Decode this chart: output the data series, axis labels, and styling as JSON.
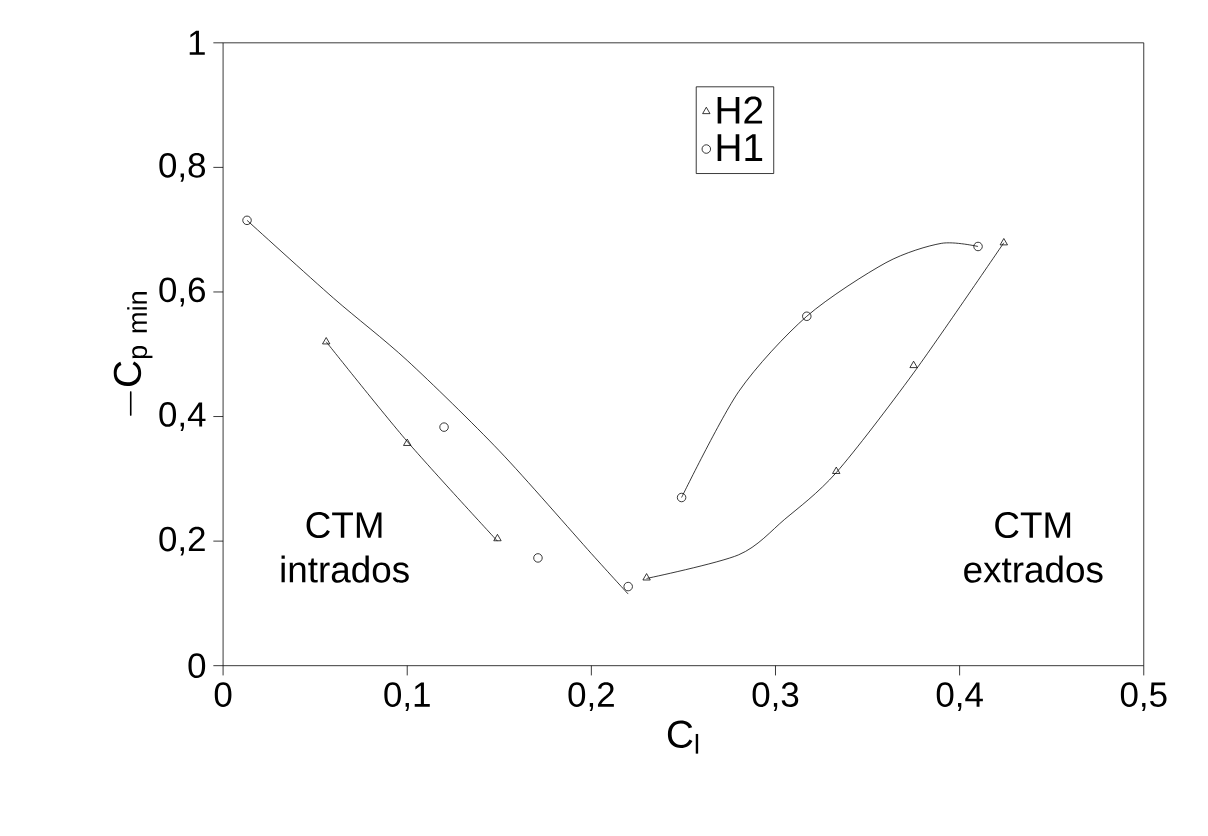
{
  "chart_data": {
    "type": "scatter",
    "xlabel": "C$_{l}$",
    "ylabel": "-\\mathrm{C}_{\\mathrm{p\\ min}}",
    "xlim": [
      0,
      0.5
    ],
    "ylim": [
      0,
      1
    ],
    "xticks": [
      0,
      {
        "value": 0.1,
        "label": "0,1"
      },
      {
        "value": 0.2,
        "label": "0,2"
      },
      {
        "value": 0.3,
        "label": "0,3"
      },
      {
        "value": 0.4,
        "label": "0,4"
      },
      {
        "value": 0.5,
        "label": "0,5"
      }
    ],
    "yticks": [
      0,
      {
        "value": 0.2,
        "label": "0,2"
      },
      {
        "value": 0.4,
        "label": "0,4"
      },
      {
        "value": 0.6,
        "label": "0,6"
      },
      {
        "value": 0.8,
        "label": "0,8"
      },
      1
    ],
    "legend": "top",
    "series": [
      {
        "name": "H2",
        "marker": "triangle",
        "color": "#000000",
        "x": [
          0.056,
          0.1,
          0.149,
          0.23,
          0.333,
          0.375,
          0.424
        ],
        "values": [
          0.52,
          0.357,
          0.204,
          0.141,
          0.312,
          0.482,
          0.679
        ]
      },
      {
        "name": "H1",
        "marker": "circle",
        "color": "#000000",
        "x": [
          0.013,
          0.12,
          0.171,
          0.22,
          0.249,
          0.317,
          0.41
        ],
        "values": [
          0.715,
          0.383,
          0.173,
          0.127,
          0.27,
          0.561,
          0.673
        ]
      },
      {
        "type": "line",
        "marker": "none",
        "color": "#000000",
        "x": [
          0.013,
          0.06,
          0.1,
          0.15,
          0.2,
          0.22
        ],
        "values": [
          0.715,
          0.59,
          0.49,
          0.345,
          0.18,
          0.115
        ]
      },
      {
        "type": "line",
        "marker": "none",
        "color": "#000000",
        "x": [
          0.056,
          0.1,
          0.149
        ],
        "values": [
          0.52,
          0.36,
          0.2
        ]
      },
      {
        "type": "line",
        "marker": "none",
        "color": "#000000",
        "x": [
          0.23,
          0.28,
          0.305,
          0.333,
          0.375,
          0.424
        ],
        "values": [
          0.14,
          0.178,
          0.235,
          0.31,
          0.47,
          0.679
        ]
      },
      {
        "type": "line",
        "marker": "none",
        "color": "#000000",
        "x": [
          0.249,
          0.28,
          0.317,
          0.36,
          0.39,
          0.41
        ],
        "values": [
          0.27,
          0.44,
          0.561,
          0.647,
          0.678,
          0.673
        ]
      }
    ],
    "annotations": [
      "CTM intrados",
      "CTM extrados"
    ]
  }
}
